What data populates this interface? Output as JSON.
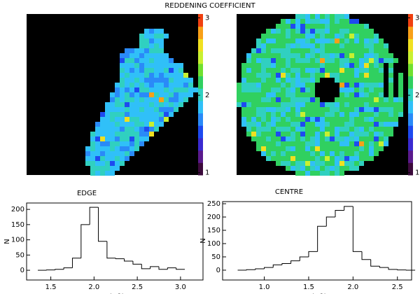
{
  "chart_data": [
    {
      "type": "image-map",
      "title": "REDDENING COEFFICIENT",
      "colorbar": {
        "lim": [
          0.97,
          3.05
        ],
        "ticks": [
          1,
          2,
          3
        ]
      }
    },
    {
      "type": "histogram",
      "title": "EDGE",
      "xlabel": "c(Hβ)",
      "ylabel": "N",
      "bins": [
        1.35,
        1.45,
        1.55,
        1.65,
        1.75,
        1.85,
        1.95,
        2.05,
        2.15,
        2.25,
        2.35,
        2.45,
        2.55,
        2.65,
        2.75,
        2.85,
        2.95,
        3.05
      ],
      "values": [
        0,
        1,
        3,
        8,
        40,
        150,
        207,
        95,
        40,
        38,
        30,
        20,
        5,
        12,
        3,
        8,
        3
      ],
      "xlim": [
        1.22,
        3.26
      ],
      "xticks": [
        1.5,
        {
          "value": 2,
          "label": "2.0"
        },
        2.5,
        {
          "value": 3,
          "label": "3.0"
        }
      ],
      "ylim": [
        -32,
        221
      ],
      "yticks": [
        0,
        50,
        100,
        150,
        200
      ],
      "color": "#000000"
    },
    {
      "type": "histogram",
      "title": "CENTRE",
      "xlabel": "c(Hβ)",
      "ylabel": "N",
      "bins": [
        0.7,
        0.8,
        0.9,
        1.0,
        1.1,
        1.2,
        1.3,
        1.4,
        1.5,
        1.6,
        1.7,
        1.8,
        1.9,
        2.0,
        2.1,
        2.2,
        2.3,
        2.4,
        2.5,
        2.6,
        2.7
      ],
      "values": [
        0,
        2,
        5,
        10,
        20,
        25,
        35,
        50,
        70,
        165,
        200,
        225,
        240,
        70,
        40,
        15,
        10,
        3,
        1,
        0
      ],
      "xlim": [
        0.53,
        2.66
      ],
      "xticks": [
        {
          "value": 1,
          "label": "1.0"
        },
        1.5,
        {
          "value": 2,
          "label": "2.0"
        },
        2.5
      ],
      "ylim": [
        -37,
        258
      ],
      "yticks": [
        0,
        50,
        100,
        150,
        200,
        250
      ],
      "color": "#000000"
    }
  ]
}
